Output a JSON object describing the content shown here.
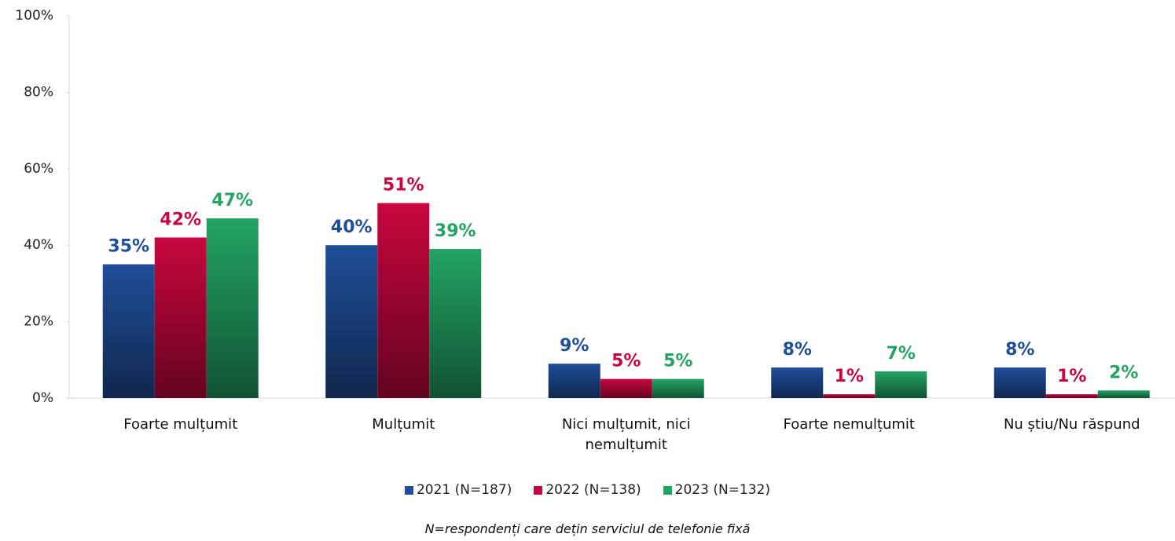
{
  "chart_data": {
    "type": "bar",
    "categories": [
      "Foarte mulțumit",
      "Mulțumit",
      "Nici mulțumit, nici nemulțumit",
      "Foarte nemulțumit",
      "Nu știu/Nu răspund"
    ],
    "series": [
      {
        "name": "2021 (N=187)",
        "color": "#1f4e9a",
        "values": [
          35,
          40,
          9,
          8,
          8
        ],
        "value_labels": [
          "35%",
          "40%",
          "9%",
          "8%",
          "8%"
        ]
      },
      {
        "name": "2022 (N=138)",
        "color": "#c8063f",
        "values": [
          42,
          51,
          5,
          1,
          1
        ],
        "value_labels": [
          "42%",
          "51%",
          "5%",
          "1%",
          "1%"
        ]
      },
      {
        "name": "2023 (N=132)",
        "color": "#22a463",
        "values": [
          47,
          39,
          5,
          7,
          2
        ],
        "value_labels": [
          "47%",
          "39%",
          "5%",
          "7%",
          "2%"
        ]
      }
    ],
    "ylim": [
      0,
      100
    ],
    "yticks": [
      {
        "value": 0,
        "label": "0%"
      },
      {
        "value": 20,
        "label": "20%"
      },
      {
        "value": 40,
        "label": "40%"
      },
      {
        "value": 60,
        "label": "60%"
      },
      {
        "value": 80,
        "label": "80%"
      },
      {
        "value": 100,
        "label": "100%"
      }
    ],
    "note": "N=respondenți care dețin serviciul de telefonie fixă"
  }
}
